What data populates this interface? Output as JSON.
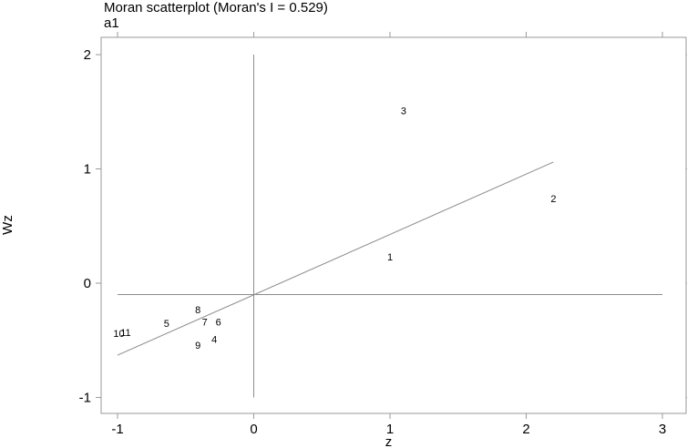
{
  "chart_data": {
    "type": "scatter",
    "title": "Moran scatterplot (Moran's I = 0.529)",
    "subtitle": "a1",
    "xlabel": "z",
    "ylabel": "Wz",
    "xlim": [
      -1,
      3
    ],
    "ylim": [
      -1,
      2
    ],
    "xticks": [
      "-1",
      "0",
      "1",
      "2",
      "3"
    ],
    "yticks": [
      "-1",
      "0",
      "1",
      "2"
    ],
    "grid": false,
    "points": [
      {
        "label": "1",
        "x": 1.0,
        "y": 0.23
      },
      {
        "label": "2",
        "x": 2.2,
        "y": 0.74
      },
      {
        "label": "3",
        "x": 1.1,
        "y": 1.51
      },
      {
        "label": "4",
        "x": -0.29,
        "y": -0.49
      },
      {
        "label": "5",
        "x": -0.64,
        "y": -0.35
      },
      {
        "label": "6",
        "x": -0.26,
        "y": -0.34
      },
      {
        "label": "7",
        "x": -0.36,
        "y": -0.34
      },
      {
        "label": "8",
        "x": -0.41,
        "y": -0.23
      },
      {
        "label": "9",
        "x": -0.41,
        "y": -0.54
      },
      {
        "label": "10",
        "x": -0.99,
        "y": -0.44
      },
      {
        "label": "11",
        "x": -0.94,
        "y": -0.43
      }
    ],
    "reference_lines": {
      "vertical_at_x": 0,
      "horizontal_at_y": -0.1
    },
    "fit_line": {
      "from": [
        -1,
        -0.63
      ],
      "to": [
        2.2,
        1.06
      ]
    }
  }
}
